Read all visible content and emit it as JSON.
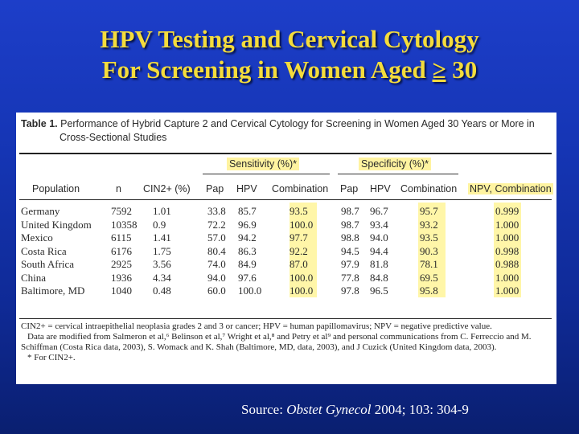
{
  "slide": {
    "title_line1": "HPV Testing and Cervical Cytology",
    "title_line2_prefix": "For Screening in Women Aged ",
    "title_line2_geq": "≥",
    "title_line2_suffix": " 30",
    "source_prefix": "Source: ",
    "source_journal": "Obstet Gynecol",
    "source_suffix": " 2004; 103: 304-9"
  },
  "table": {
    "caption_label": "Table 1.",
    "caption_line1": "Performance of Hybrid Capture 2 and Cervical Cytology for Screening in Women Aged 30 Years or More in",
    "caption_line2": "Cross-Sectional Studies",
    "group_sensitivity": "Sensitivity (%)*",
    "group_specificity": "Specificity (%)*",
    "columns": [
      "Population",
      "n",
      "CIN2+ (%)",
      "Pap",
      "HPV",
      "Combination",
      "Pap",
      "HPV",
      "Combination",
      "NPV, Combination"
    ],
    "rows": [
      [
        "Germany",
        "7592",
        "1.01",
        "33.8",
        "85.7",
        "93.5",
        "98.7",
        "96.7",
        "95.7",
        "0.999"
      ],
      [
        "United Kingdom",
        "10358",
        "0.9",
        "72.2",
        "96.9",
        "100.0",
        "98.7",
        "93.4",
        "93.2",
        "1.000"
      ],
      [
        "Mexico",
        "6115",
        "1.41",
        "57.0",
        "94.2",
        "97.7",
        "98.8",
        "94.0",
        "93.5",
        "1.000"
      ],
      [
        "Costa Rica",
        "6176",
        "1.75",
        "80.4",
        "86.3",
        "92.2",
        "94.5",
        "94.4",
        "90.3",
        "0.998"
      ],
      [
        "South Africa",
        "2925",
        "3.56",
        "74.0",
        "84.9",
        "87.0",
        "97.9",
        "81.8",
        "78.1",
        "0.988"
      ],
      [
        "China",
        "1936",
        "4.34",
        "94.0",
        "97.6",
        "100.0",
        "77.8",
        "84.8",
        "69.5",
        "1.000"
      ],
      [
        "Baltimore, MD",
        "1040",
        "0.48",
        "60.0",
        "100.0",
        "100.0",
        "97.8",
        "96.5",
        "95.8",
        "1.000"
      ]
    ],
    "footnote1": "CIN2+ = cervical intraepithelial neoplasia grades 2 and 3 or cancer; HPV = human papillomavirus; NPV = negative predictive value.",
    "footnote2": "Data are modified from Salmeron et al,⁶ Belinson et al,⁷ Wright et al,⁸ and Petry et al⁹ and personal communications from C. Ferreccio and M.",
    "footnote3": "Schiffman (Costa Rica data, 2003), S. Womack and K. Shah (Baltimore, MD, data, 2003), and J Cuzick (United Kingdom data, 2003).",
    "footnote4": "* For CIN2+."
  }
}
